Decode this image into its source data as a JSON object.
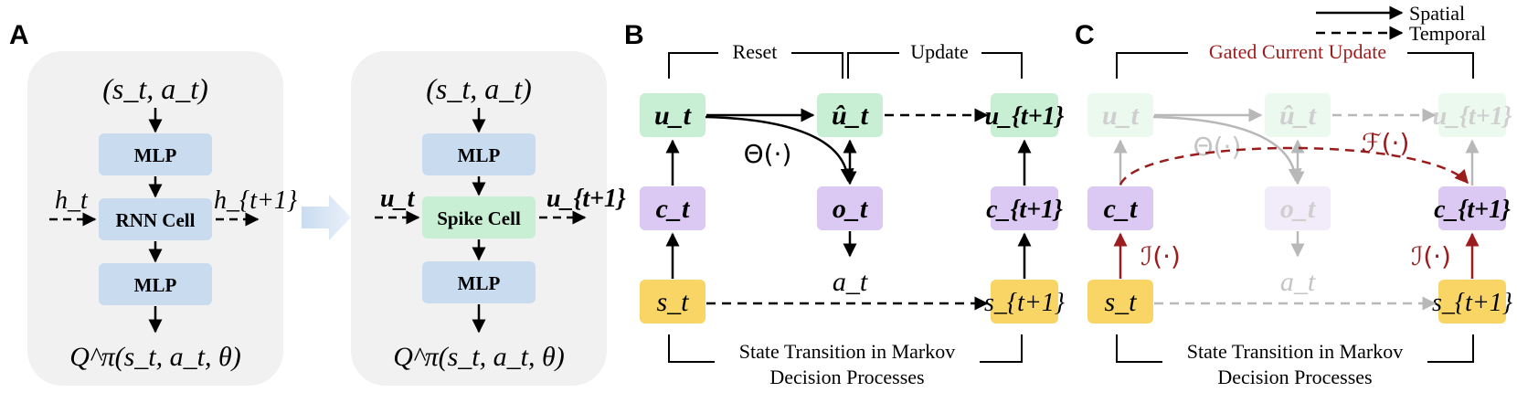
{
  "panels": {
    "a_label": "A",
    "b_label": "B",
    "c_label": "C"
  },
  "panel_a": {
    "left": {
      "input": "(s_t, a_t)",
      "mlp_top": "MLP",
      "cell": "RNN Cell",
      "mlp_bottom": "MLP",
      "output": "Q^π(s_t, a_t, θ)",
      "state_in": "h_t",
      "state_out": "h_{t+1}"
    },
    "right": {
      "input": "(s_t, a_t)",
      "mlp_top": "MLP",
      "cell": "Spike Cell",
      "mlp_bottom": "MLP",
      "output": "Q^π(s_t, a_t, θ)",
      "state_in": "u_t",
      "state_out": "u_{t+1}"
    }
  },
  "panel_b": {
    "reset": "Reset",
    "update": "Update",
    "u_t": "u_t",
    "u_hat_t": "û_t",
    "u_t1": "u_{t+1}",
    "c_t": "c_t",
    "o_t": "o_t",
    "c_t1": "c_{t+1}",
    "s_t": "s_t",
    "s_t1": "s_{t+1}",
    "a_t": "a_t",
    "theta": "Θ(·)",
    "caption_1": "State Transition in Markov",
    "caption_2": "Decision Processes"
  },
  "panel_c": {
    "gated": "Gated Current Update",
    "u_t": "u_t",
    "u_hat_t": "û_t",
    "u_t1": "u_{t+1}",
    "c_t": "c_t",
    "o_t": "o_t",
    "c_t1": "c_{t+1}",
    "s_t": "s_t",
    "s_t1": "s_{t+1}",
    "a_t": "a_t",
    "theta": "Θ(·)",
    "f_label": "ℱ(·)",
    "i_left": "ℐ(·)",
    "i_right": "ℐ(·)",
    "caption_1": "State Transition in Markov",
    "caption_2": "Decision Processes"
  },
  "legend": {
    "spatial": "Spatial",
    "temporal": "Temporal"
  },
  "colors": {
    "mlp_blue": "#c9dcef",
    "spike_green": "#c8efd3",
    "u_green": "#c8efd3",
    "c_purple": "#dbc8f3",
    "s_yellow": "#f8d564",
    "dark_red": "#9b1c1c",
    "faded_gray": "#b8b8b8",
    "panel_bg": "#f1f1f1"
  }
}
